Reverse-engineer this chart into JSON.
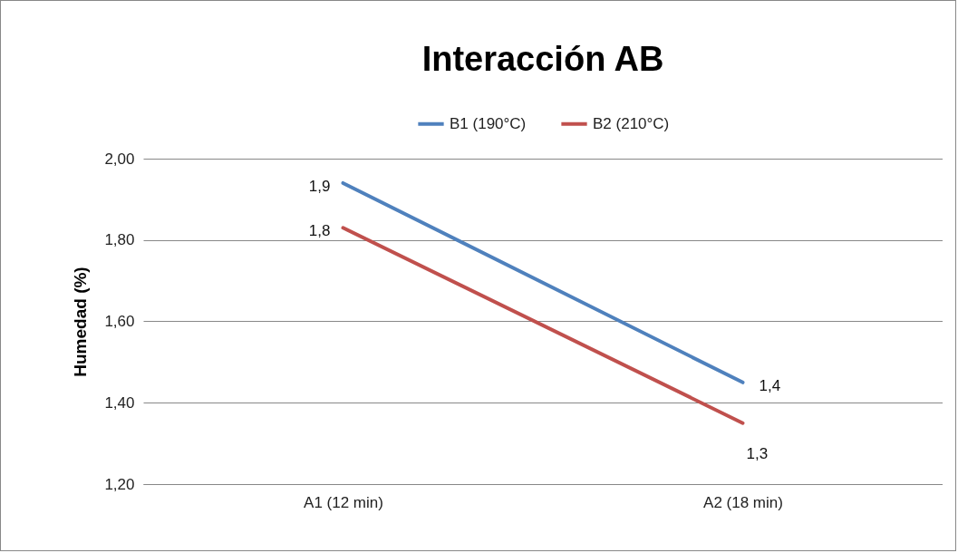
{
  "chart_data": {
    "type": "line",
    "title": "Interacción AB",
    "ylabel": "Humedad (%)",
    "categories": [
      "A1 (12 min)",
      "A2 (18 min)"
    ],
    "series": [
      {
        "name": "B1 (190°C)",
        "color": "#4f81bd",
        "values": [
          1.94,
          1.45
        ],
        "value_labels": [
          "1,9",
          "1,4"
        ]
      },
      {
        "name": "B2 (210°C)",
        "color": "#c0504d",
        "values": [
          1.83,
          1.35
        ],
        "value_labels": [
          "1,8",
          "1,3"
        ]
      }
    ],
    "ylim": [
      1.2,
      2.0
    ],
    "yticks": [
      {
        "value": 1.2,
        "label": "1,20"
      },
      {
        "value": 1.4,
        "label": "1,40"
      },
      {
        "value": 1.6,
        "label": "1,60"
      },
      {
        "value": 1.8,
        "label": "1,80"
      },
      {
        "value": 2.0,
        "label": "2,00"
      }
    ],
    "grid": "y",
    "legend": "top",
    "marker": "none",
    "line_style": "solid"
  }
}
